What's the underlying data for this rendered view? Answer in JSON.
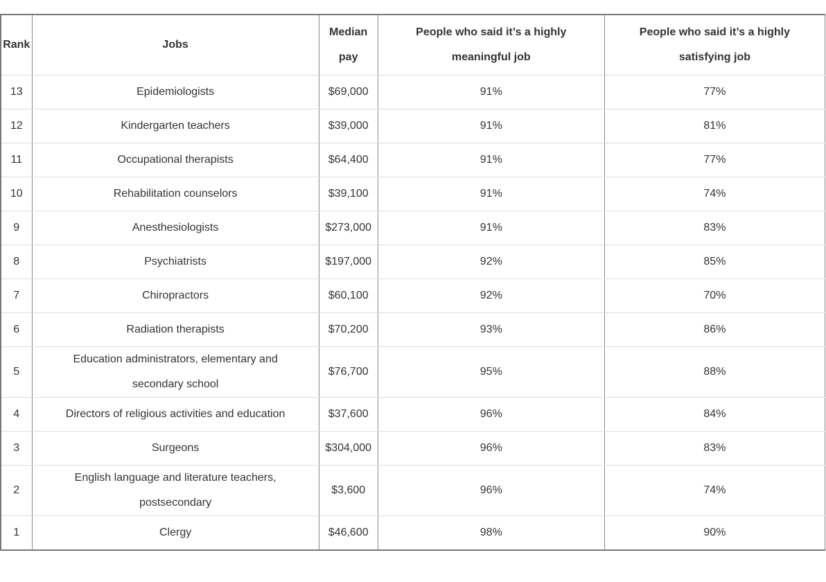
{
  "headers": [
    "Rank",
    "Jobs",
    "Median pay",
    "People who said it’s a highly meaningful job",
    "People who said it’s a highly satisfying job"
  ],
  "rows": [
    [
      "13",
      "Epidemiologists",
      "$69,000",
      "91%",
      "77%"
    ],
    [
      "12",
      "Kindergarten teachers",
      "$39,000",
      "91%",
      "81%"
    ],
    [
      "11",
      "Occupational therapists",
      "$64,400",
      "91%",
      "77%"
    ],
    [
      "10",
      "Rehabilitation counselors",
      "$39,100",
      "91%",
      "74%"
    ],
    [
      "9",
      "Anesthesiologists",
      "$273,000",
      "91%",
      "83%"
    ],
    [
      "8",
      "Psychiatrists",
      "$197,000",
      "92%",
      "85%"
    ],
    [
      "7",
      "Chiropractors",
      "$60,100",
      "92%",
      "70%"
    ],
    [
      "6",
      "Radiation therapists",
      "$70,200",
      "93%",
      "86%"
    ],
    [
      "5",
      "Education administrators, elementary and secondary school",
      "$76,700",
      "95%",
      "88%"
    ],
    [
      "4",
      "Directors of religious activities and education",
      "$37,600",
      "96%",
      "84%"
    ],
    [
      "3",
      "Surgeons",
      "$304,000",
      "96%",
      "83%"
    ],
    [
      "2",
      "English language and literature teachers, postsecondary",
      "$3,600",
      "96%",
      "74%"
    ],
    [
      "1",
      "Clergy",
      "$46,600",
      "98%",
      "90%"
    ]
  ]
}
